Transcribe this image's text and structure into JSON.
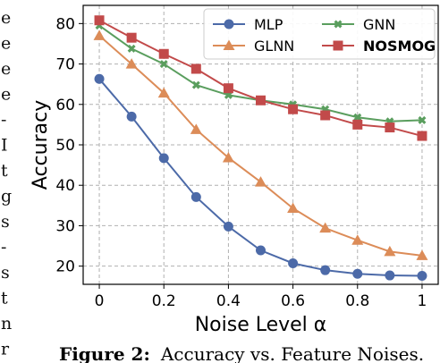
{
  "chart_data": {
    "type": "line",
    "x": [
      0,
      0.1,
      0.2,
      0.3,
      0.4,
      0.5,
      0.6,
      0.7,
      0.8,
      0.9,
      1.0
    ],
    "series": [
      {
        "name": "MLP",
        "color": "#4c6aa8",
        "marker": "circle",
        "values": [
          66.3,
          57.0,
          46.7,
          37.1,
          29.8,
          23.9,
          20.7,
          19.0,
          18.1,
          17.7,
          17.6
        ]
      },
      {
        "name": "GNN",
        "color": "#5a9e5e",
        "marker": "x",
        "values": [
          79.5,
          73.8,
          70.0,
          64.8,
          62.3,
          61.0,
          60.0,
          58.8,
          56.8,
          55.8,
          56.1
        ]
      },
      {
        "name": "GLNN",
        "color": "#dc8c58",
        "marker": "triangle",
        "values": [
          77.0,
          70.0,
          62.8,
          53.8,
          46.8,
          40.8,
          34.3,
          29.4,
          26.4,
          23.6,
          22.6
        ]
      },
      {
        "name": "NOSMOG",
        "color": "#c24a4a",
        "marker": "square",
        "values": [
          80.8,
          76.5,
          72.5,
          68.8,
          64.0,
          61.0,
          58.8,
          57.3,
          55.0,
          54.3,
          52.2
        ]
      }
    ],
    "xlabel": "Noise Level α",
    "ylabel": "Accuracy",
    "xticks": [
      "0",
      "0.2",
      "0.4",
      "0.6",
      "0.8",
      "1"
    ],
    "xtick_values": [
      0,
      0.2,
      0.4,
      0.6,
      0.8,
      1.0
    ],
    "yticks": [
      "20",
      "30",
      "40",
      "50",
      "60",
      "70",
      "80"
    ],
    "ytick_values": [
      20,
      30,
      40,
      50,
      60,
      70,
      80
    ],
    "xlim": [
      -0.05,
      1.05
    ],
    "ylim": [
      15.5,
      84.5
    ],
    "grid": true,
    "legend": "top-right",
    "legend_bold": "NOSMOG"
  },
  "caption": {
    "label": "Figure 2:",
    "text": "Accuracy vs. Feature Noises."
  },
  "side_text": [
    "e",
    "e",
    "e",
    "e",
    "-",
    "I",
    "t",
    "g",
    "s",
    "-",
    "s",
    "t",
    "n",
    "r"
  ]
}
